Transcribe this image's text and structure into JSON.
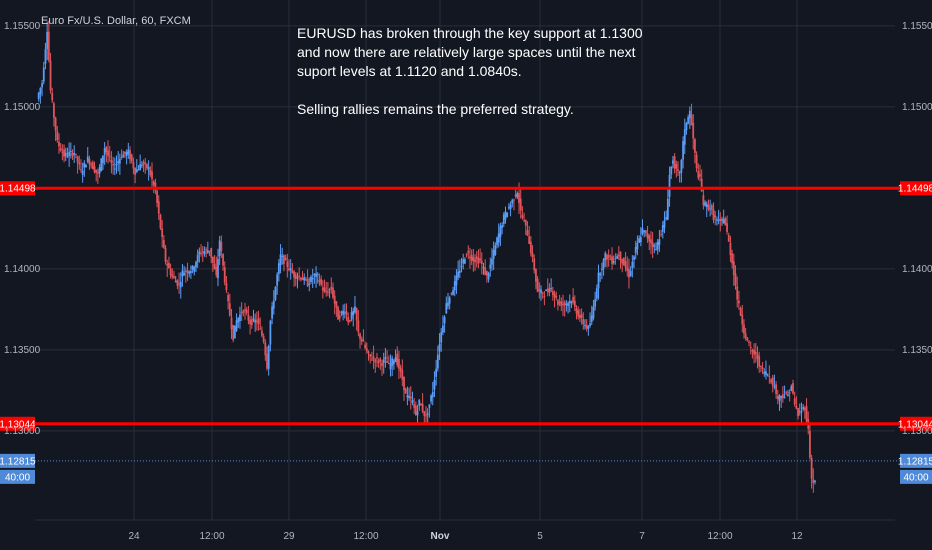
{
  "symbol_header": "Euro Fx/U.S. Dollar, 60, FXCM",
  "annotation_lines": [
    "EURUSD has broken through the key support at 1.1300",
    "and now there are relatively large spaces until the next",
    "suport levels at 1.1120 and 1.0840s.",
    "",
    "Selling rallies remains the preferred strategy."
  ],
  "colors": {
    "background": "#131722",
    "grid": "#2a2e39",
    "up_candle": "#5b9cf6",
    "down_candle": "#e0555b",
    "horizontal_line": "#ff0000",
    "last_price_line": "#4f8ad9"
  },
  "chart_data": {
    "type": "candlestick",
    "ylim": [
      1.1245,
      1.1566
    ],
    "y_ticks": [
      "1.15500",
      "1.15000",
      "1.14000",
      "1.13500",
      "1.13000"
    ],
    "x_ticks": [
      {
        "label": "24",
        "bold": false
      },
      {
        "label": "12:00",
        "bold": false
      },
      {
        "label": "29",
        "bold": false
      },
      {
        "label": "12:00",
        "bold": false
      },
      {
        "label": "Nov",
        "bold": true
      },
      {
        "label": "5",
        "bold": false
      },
      {
        "label": "7",
        "bold": false
      },
      {
        "label": "12:00",
        "bold": false
      },
      {
        "label": "12",
        "bold": false
      }
    ],
    "horizontal_lines": [
      {
        "price": 1.14498,
        "label": "1.14498"
      },
      {
        "price": 1.13044,
        "label": "1.13044"
      }
    ],
    "last_price": {
      "price": 1.12815,
      "label": "1.12815",
      "countdown": "40:00"
    },
    "close_path": [
      [
        0,
        1.1505
      ],
      [
        3,
        1.1515
      ],
      [
        6,
        1.1548
      ],
      [
        8,
        1.151
      ],
      [
        12,
        1.1478
      ],
      [
        16,
        1.147
      ],
      [
        22,
        1.1472
      ],
      [
        26,
        1.146
      ],
      [
        30,
        1.1468
      ],
      [
        36,
        1.1458
      ],
      [
        40,
        1.1475
      ],
      [
        45,
        1.1462
      ],
      [
        50,
        1.147
      ],
      [
        54,
        1.1472
      ],
      [
        58,
        1.146
      ],
      [
        62,
        1.1465
      ],
      [
        66,
        1.1462
      ],
      [
        70,
        1.1448
      ],
      [
        74,
        1.1418
      ],
      [
        76,
        1.1405
      ],
      [
        80,
        1.1395
      ],
      [
        84,
        1.139
      ],
      [
        86,
        1.1398
      ],
      [
        92,
        1.14
      ],
      [
        96,
        1.141
      ],
      [
        102,
        1.1412
      ],
      [
        106,
        1.1395
      ],
      [
        108,
        1.1418
      ],
      [
        112,
        1.1385
      ],
      [
        116,
        1.1358
      ],
      [
        118,
        1.1368
      ],
      [
        122,
        1.1375
      ],
      [
        126,
        1.1367
      ],
      [
        130,
        1.1368
      ],
      [
        134,
        1.1356
      ],
      [
        136,
        1.134
      ],
      [
        138,
        1.1368
      ],
      [
        142,
        1.1396
      ],
      [
        144,
        1.1408
      ],
      [
        148,
        1.1402
      ],
      [
        152,
        1.1396
      ],
      [
        156,
        1.1395
      ],
      [
        160,
        1.1391
      ],
      [
        164,
        1.1396
      ],
      [
        166,
        1.1395
      ],
      [
        170,
        1.1385
      ],
      [
        174,
        1.1388
      ],
      [
        178,
        1.137
      ],
      [
        182,
        1.1375
      ],
      [
        184,
        1.1368
      ],
      [
        188,
        1.1375
      ],
      [
        190,
        1.136
      ],
      [
        192,
        1.1356
      ],
      [
        196,
        1.1346
      ],
      [
        200,
        1.1344
      ],
      [
        204,
        1.1342
      ],
      [
        206,
        1.1344
      ],
      [
        208,
        1.134
      ],
      [
        212,
        1.1346
      ],
      [
        216,
        1.1332
      ],
      [
        218,
        1.1322
      ],
      [
        222,
        1.1318
      ],
      [
        224,
        1.131
      ],
      [
        226,
        1.1318
      ],
      [
        230,
        1.1308
      ],
      [
        234,
        1.1325
      ],
      [
        238,
        1.1355
      ],
      [
        242,
        1.1378
      ],
      [
        246,
        1.1388
      ],
      [
        250,
        1.14
      ],
      [
        254,
        1.141
      ],
      [
        258,
        1.1406
      ],
      [
        262,
        1.1405
      ],
      [
        266,
        1.1395
      ],
      [
        268,
        1.1402
      ],
      [
        272,
        1.1418
      ],
      [
        276,
        1.1432
      ],
      [
        280,
        1.144
      ],
      [
        284,
        1.1448
      ],
      [
        286,
        1.1435
      ],
      [
        290,
        1.1422
      ],
      [
        294,
        1.14
      ],
      [
        296,
        1.1386
      ],
      [
        300,
        1.1385
      ],
      [
        304,
        1.1388
      ],
      [
        308,
        1.1379
      ],
      [
        312,
        1.1378
      ],
      [
        316,
        1.1381
      ],
      [
        318,
        1.1376
      ],
      [
        322,
        1.1368
      ],
      [
        326,
        1.1363
      ],
      [
        328,
        1.137
      ],
      [
        332,
        1.1396
      ],
      [
        336,
        1.1408
      ],
      [
        340,
        1.1405
      ],
      [
        344,
        1.1409
      ],
      [
        348,
        1.1401
      ],
      [
        350,
        1.1396
      ],
      [
        354,
        1.1412
      ],
      [
        358,
        1.1424
      ],
      [
        362,
        1.1418
      ],
      [
        366,
        1.1412
      ],
      [
        368,
        1.142
      ],
      [
        372,
        1.1432
      ],
      [
        374,
        1.1458
      ],
      [
        376,
        1.1468
      ],
      [
        378,
        1.146
      ],
      [
        380,
        1.1458
      ],
      [
        382,
        1.1478
      ],
      [
        384,
        1.1491
      ],
      [
        386,
        1.1497
      ],
      [
        388,
        1.148
      ],
      [
        390,
        1.1461
      ],
      [
        392,
        1.1455
      ],
      [
        394,
        1.144
      ],
      [
        398,
        1.1438
      ],
      [
        400,
        1.1432
      ],
      [
        404,
        1.1428
      ],
      [
        406,
        1.1432
      ],
      [
        408,
        1.1422
      ],
      [
        410,
        1.141
      ],
      [
        412,
        1.1398
      ],
      [
        414,
        1.1382
      ],
      [
        418,
        1.1362
      ],
      [
        420,
        1.1355
      ],
      [
        422,
        1.135
      ],
      [
        426,
        1.1345
      ],
      [
        428,
        1.1338
      ],
      [
        432,
        1.1335
      ],
      [
        434,
        1.1332
      ],
      [
        436,
        1.1327
      ],
      [
        438,
        1.132
      ],
      [
        440,
        1.1322
      ],
      [
        444,
        1.1322
      ],
      [
        446,
        1.1328
      ],
      [
        448,
        1.1316
      ],
      [
        450,
        1.131
      ],
      [
        454,
        1.1315
      ],
      [
        456,
        1.13
      ],
      [
        458,
        1.127
      ],
      [
        460,
        1.1268
      ]
    ]
  }
}
